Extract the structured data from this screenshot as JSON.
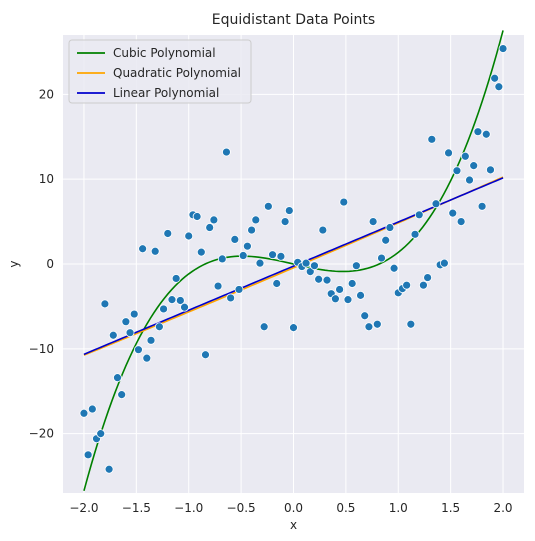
{
  "chart_data": {
    "type": "scatter",
    "title": "Equidistant Data Points",
    "xlabel": "x",
    "ylabel": "y",
    "xlim": [
      -2.2,
      2.2
    ],
    "ylim": [
      -27,
      27
    ],
    "xticks": [
      "−2.0",
      "−1.5",
      "−1.0",
      "−0.5",
      "0.0",
      "0.5",
      "1.0",
      "1.5",
      "2.0"
    ],
    "xtick_values": [
      -2.0,
      -1.5,
      -1.0,
      -0.5,
      0.0,
      0.5,
      1.0,
      1.5,
      2.0
    ],
    "yticks": [
      "−20",
      "−10",
      "0",
      "10",
      "20"
    ],
    "ytick_values": [
      -20,
      -10,
      0,
      10,
      20
    ],
    "grid": true,
    "legend_position": "top-left",
    "background": "#eaeaf2",
    "scatter": {
      "color": "#1f77b4",
      "points": [
        [
          -2.0,
          -17.6
        ],
        [
          -1.96,
          -22.5
        ],
        [
          -1.92,
          -17.1
        ],
        [
          -1.88,
          -20.6
        ],
        [
          -1.84,
          -20.0
        ],
        [
          -1.8,
          -4.7
        ],
        [
          -1.76,
          -24.2
        ],
        [
          -1.72,
          -8.4
        ],
        [
          -1.68,
          -13.4
        ],
        [
          -1.64,
          -15.4
        ],
        [
          -1.6,
          -6.8
        ],
        [
          -1.56,
          -8.1
        ],
        [
          -1.52,
          -5.9
        ],
        [
          -1.48,
          -10.1
        ],
        [
          -1.44,
          1.8
        ],
        [
          -1.4,
          -11.1
        ],
        [
          -1.36,
          -9.0
        ],
        [
          -1.32,
          1.5
        ],
        [
          -1.28,
          -7.4
        ],
        [
          -1.24,
          -5.3
        ],
        [
          -1.2,
          3.6
        ],
        [
          -1.16,
          -4.2
        ],
        [
          -1.12,
          -1.7
        ],
        [
          -1.08,
          -4.3
        ],
        [
          -1.04,
          -5.1
        ],
        [
          -1.0,
          3.3
        ],
        [
          -0.96,
          5.8
        ],
        [
          -0.92,
          5.6
        ],
        [
          -0.88,
          1.4
        ],
        [
          -0.84,
          -10.7
        ],
        [
          -0.8,
          4.3
        ],
        [
          -0.76,
          5.2
        ],
        [
          -0.72,
          -2.6
        ],
        [
          -0.68,
          0.6
        ],
        [
          -0.64,
          13.2
        ],
        [
          -0.6,
          -4.0
        ],
        [
          -0.56,
          2.9
        ],
        [
          -0.52,
          -3.0
        ],
        [
          -0.48,
          1.0
        ],
        [
          -0.44,
          2.1
        ],
        [
          -0.4,
          4.0
        ],
        [
          -0.36,
          5.2
        ],
        [
          -0.32,
          0.1
        ],
        [
          -0.28,
          -7.4
        ],
        [
          -0.24,
          6.8
        ],
        [
          -0.2,
          1.1
        ],
        [
          -0.16,
          -2.3
        ],
        [
          -0.12,
          0.9
        ],
        [
          -0.08,
          5.0
        ],
        [
          -0.04,
          6.3
        ],
        [
          0.0,
          -7.5
        ],
        [
          0.04,
          0.2
        ],
        [
          0.08,
          -0.3
        ],
        [
          0.12,
          0.1
        ],
        [
          0.16,
          -0.9
        ],
        [
          0.2,
          -0.2
        ],
        [
          0.24,
          -1.8
        ],
        [
          0.28,
          4.0
        ],
        [
          0.32,
          -1.9
        ],
        [
          0.36,
          -3.5
        ],
        [
          0.4,
          -4.1
        ],
        [
          0.44,
          -3.0
        ],
        [
          0.48,
          7.3
        ],
        [
          0.52,
          -4.2
        ],
        [
          0.56,
          -2.3
        ],
        [
          0.6,
          -0.2
        ],
        [
          0.64,
          -3.7
        ],
        [
          0.68,
          -6.1
        ],
        [
          0.72,
          -7.4
        ],
        [
          0.76,
          5.0
        ],
        [
          0.8,
          -7.1
        ],
        [
          0.84,
          0.7
        ],
        [
          0.88,
          2.8
        ],
        [
          0.92,
          4.3
        ],
        [
          0.96,
          -0.5
        ],
        [
          1.0,
          -3.4
        ],
        [
          1.04,
          -2.9
        ],
        [
          1.08,
          -2.5
        ],
        [
          1.12,
          -7.1
        ],
        [
          1.16,
          3.5
        ],
        [
          1.2,
          5.8
        ],
        [
          1.24,
          -2.5
        ],
        [
          1.28,
          -1.6
        ],
        [
          1.32,
          14.7
        ],
        [
          1.36,
          7.1
        ],
        [
          1.4,
          -0.1
        ],
        [
          1.44,
          0.1
        ],
        [
          1.48,
          13.1
        ],
        [
          1.52,
          6.0
        ],
        [
          1.56,
          11.0
        ],
        [
          1.6,
          5.0
        ],
        [
          1.64,
          12.7
        ],
        [
          1.68,
          9.9
        ],
        [
          1.72,
          11.6
        ],
        [
          1.76,
          15.6
        ],
        [
          1.8,
          6.8
        ],
        [
          1.84,
          15.3
        ],
        [
          1.88,
          11.1
        ],
        [
          1.92,
          21.9
        ],
        [
          1.96,
          20.9
        ],
        [
          2.0,
          25.4
        ]
      ]
    },
    "series": [
      {
        "name": "Cubic Polynomial",
        "color": "#008000",
        "kind": "cubic",
        "coefficients": [
          0.0,
          -2.83,
          0.1,
          4.1
        ]
      },
      {
        "name": "Quadratic Polynomial",
        "color": "#ffa500",
        "kind": "quadratic",
        "coefficients": [
          -0.45,
          5.25,
          0.05
        ]
      },
      {
        "name": "Linear Polynomial",
        "color": "#0000cd",
        "kind": "linear",
        "coefficients": [
          -0.25,
          5.2
        ]
      }
    ]
  }
}
